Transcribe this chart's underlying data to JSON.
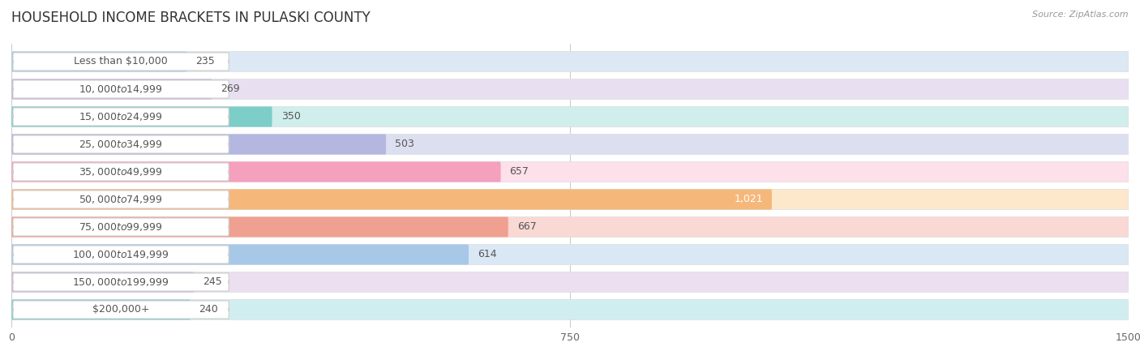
{
  "title": "HOUSEHOLD INCOME BRACKETS IN PULASKI COUNTY",
  "source_text": "Source: ZipAtlas.com",
  "categories": [
    "Less than $10,000",
    "$10,000 to $14,999",
    "$15,000 to $24,999",
    "$25,000 to $34,999",
    "$35,000 to $49,999",
    "$50,000 to $74,999",
    "$75,000 to $99,999",
    "$100,000 to $149,999",
    "$150,000 to $199,999",
    "$200,000+"
  ],
  "values": [
    235,
    269,
    350,
    503,
    657,
    1021,
    667,
    614,
    245,
    240
  ],
  "bar_colors": [
    "#aacde8",
    "#c8b8dc",
    "#7dcdc8",
    "#b4b8e0",
    "#f5a0bc",
    "#f5b87a",
    "#f0a090",
    "#a8c8e8",
    "#ccb8dc",
    "#80cdd0"
  ],
  "bar_bg_colors": [
    "#dce8f4",
    "#e8e0f0",
    "#d0eeec",
    "#dcdff0",
    "#fce0ea",
    "#fde8cc",
    "#fad8d4",
    "#dae8f5",
    "#ecdff0",
    "#d0eef0"
  ],
  "xlim": [
    0,
    1500
  ],
  "xticks": [
    0,
    750,
    1500
  ],
  "bar_height": 0.72,
  "background_color": "#ffffff",
  "title_fontsize": 12,
  "label_fontsize": 9,
  "value_fontsize": 9,
  "highlight_index": 5,
  "highlight_value_color": "#ffffff",
  "normal_value_color": "#555555",
  "label_box_color": "#ffffff",
  "label_text_color": "#555555"
}
